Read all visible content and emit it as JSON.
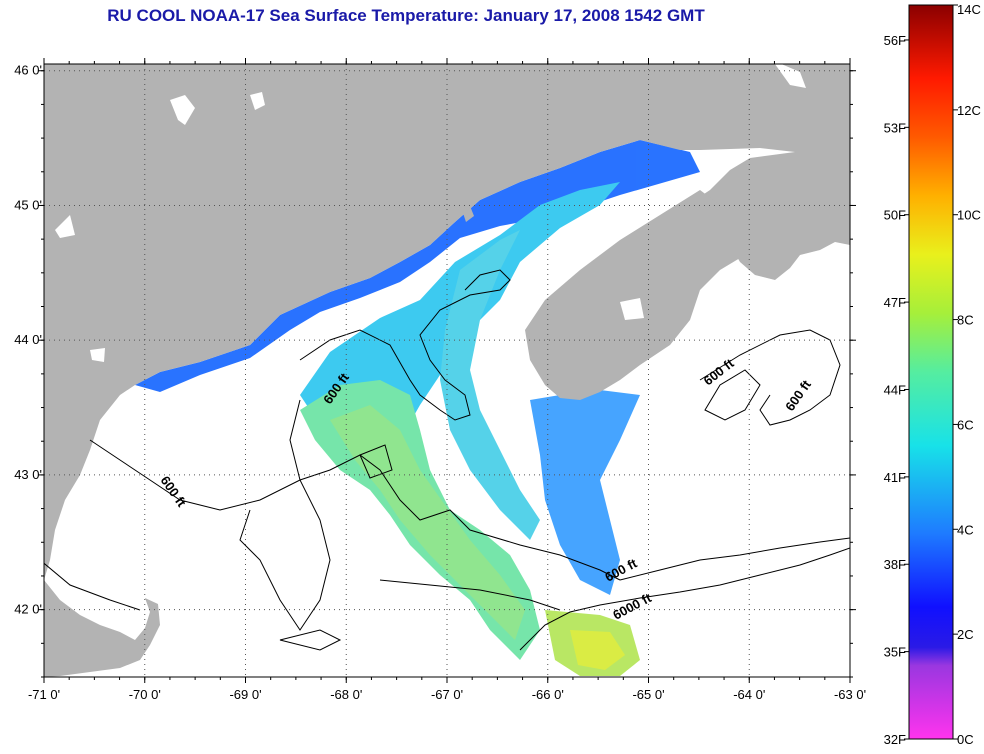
{
  "title": "RU COOL  NOAA-17  Sea Surface Temperature:  January 17, 2008 1542 GMT",
  "axes": {
    "x_ticks": [
      "-71 0'",
      "-70 0'",
      "-69 0'",
      "-68 0'",
      "-67 0'",
      "-66 0'",
      "-65 0'",
      "-64 0'",
      "-63 0'"
    ],
    "x_values": [
      -71,
      -70,
      -69,
      -68,
      -67,
      -66,
      -65,
      -64,
      -63
    ],
    "y_ticks": [
      "46 0'",
      "45 0'",
      "44 0'",
      "43 0'",
      "42 0'"
    ],
    "y_values": [
      46,
      45,
      44,
      43,
      42
    ],
    "lon_range": [
      -71,
      -63
    ],
    "lat_range": [
      41.5,
      46.05
    ],
    "grid": "dotted"
  },
  "colorbar": {
    "celsius_labels": [
      "14C",
      "12C",
      "10C",
      "8C",
      "6C",
      "4C",
      "2C",
      "0C"
    ],
    "celsius_values": [
      14,
      12,
      10,
      8,
      6,
      4,
      2,
      0
    ],
    "fahrenheit_labels": [
      "56F",
      "53F",
      "50F",
      "47F",
      "44F",
      "41F",
      "38F",
      "35F",
      "32F"
    ],
    "fahrenheit_values": [
      56,
      53,
      50,
      47,
      44,
      41,
      38,
      35,
      32
    ],
    "range_c": [
      0,
      14
    ],
    "colors": [
      "#ff33ee",
      "#6a2fd8",
      "#1a1aff",
      "#1e7bff",
      "#18e2e8",
      "#6ff07a",
      "#e9f01c",
      "#ff9a00",
      "#ff1a00",
      "#8b0000"
    ]
  },
  "contour_labels": [
    "600 ft",
    "600 ft",
    "600 ft",
    "600 ft",
    "600 ft",
    "6000 ft"
  ],
  "colors": {
    "land": "#b3b3b3",
    "ocean": "#ffffff",
    "title": "#1a1aa8",
    "contour": "#000000"
  }
}
